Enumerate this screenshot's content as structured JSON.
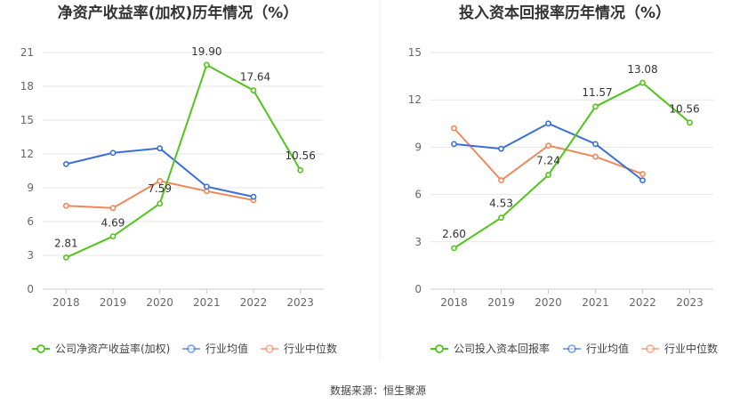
{
  "source": "数据来源：恒生聚源",
  "colors": {
    "company": "#52c41a",
    "avg": "#3a6fd8",
    "median": "#f0875a",
    "grid": "#e6e6e6",
    "axis": "#c8c8c8"
  },
  "chart_data": [
    {
      "type": "line",
      "title": "净资产收益率(加权)历年情况（%）",
      "categories": [
        "2018",
        "2019",
        "2020",
        "2021",
        "2022",
        "2023"
      ],
      "ylim": [
        0,
        21
      ],
      "yticks": [
        0,
        3,
        6,
        9,
        12,
        15,
        18,
        21
      ],
      "grid": true,
      "legend_position": "bottom-left",
      "series": [
        {
          "name": "公司净资产收益率(加权)",
          "key": "company",
          "values": [
            2.81,
            4.69,
            7.59,
            19.9,
            17.64,
            10.56
          ],
          "labels": [
            "2.81",
            "4.69",
            "7.59",
            "19.90",
            "17.64",
            "10.56"
          ]
        },
        {
          "name": "行业均值",
          "key": "avg",
          "values": [
            11.1,
            12.1,
            12.5,
            9.1,
            8.2,
            null
          ]
        },
        {
          "name": "行业中位数",
          "key": "median",
          "values": [
            7.4,
            7.2,
            9.6,
            8.7,
            7.9,
            null
          ]
        }
      ]
    },
    {
      "type": "line",
      "title": "投入资本回报率历年情况（%）",
      "categories": [
        "2018",
        "2019",
        "2020",
        "2021",
        "2022",
        "2023"
      ],
      "ylim": [
        0,
        15
      ],
      "yticks": [
        0,
        3,
        6,
        9,
        12,
        15
      ],
      "grid": true,
      "legend_position": "bottom-left",
      "series": [
        {
          "name": "公司投入资本回报率",
          "key": "company",
          "values": [
            2.6,
            4.53,
            7.24,
            11.57,
            13.08,
            10.56
          ],
          "labels": [
            "2.60",
            "4.53",
            "7.24",
            "11.57",
            "13.08",
            "10.56"
          ]
        },
        {
          "name": "行业均值",
          "key": "avg",
          "values": [
            9.2,
            8.9,
            10.5,
            9.2,
            6.9,
            null
          ]
        },
        {
          "name": "行业中位数",
          "key": "median",
          "values": [
            10.2,
            6.9,
            9.1,
            8.4,
            7.3,
            null
          ]
        }
      ]
    }
  ]
}
